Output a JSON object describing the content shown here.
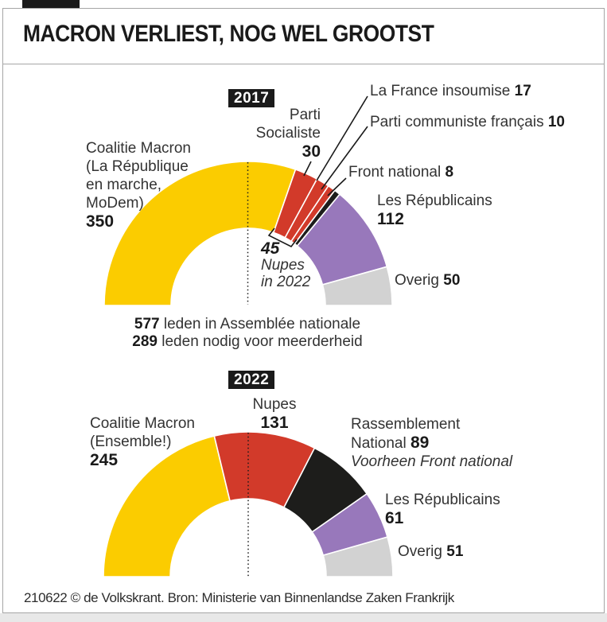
{
  "header": {
    "title": "MACRON VERLIEST, NOG WEL GROOTST"
  },
  "colors": {
    "macron": "#fbcc00",
    "left_red": "#d23a2a",
    "far_right": "#1d1d1b",
    "republicains": "#9878bb",
    "overig": "#d2d2d2"
  },
  "chart_data": [
    {
      "type": "half-donut",
      "year": "2017",
      "total_seats": 577,
      "series": [
        {
          "name": "Coalitie Macron (La République en marche, MoDem)",
          "label_lines": [
            "Coalitie Macron",
            "(La République",
            "en marche,",
            "MoDem)"
          ],
          "value": 350,
          "color_key": "macron"
        },
        {
          "name": "Parti Socialiste",
          "label_lines": [
            "Parti",
            "Socialiste"
          ],
          "value": 30,
          "color_key": "left_red"
        },
        {
          "name": "La France insoumise",
          "value": 17,
          "color_key": "left_red"
        },
        {
          "name": "Parti communiste français",
          "value": 10,
          "color_key": "left_red"
        },
        {
          "name": "Front national",
          "value": 8,
          "color_key": "far_right"
        },
        {
          "name": "Les Républicains",
          "value": 112,
          "color_key": "republicains"
        },
        {
          "name": "Overig",
          "value": 50,
          "color_key": "overig"
        }
      ],
      "annotation": {
        "value": "45",
        "line1": "Nupes",
        "line2": "in 2022"
      },
      "footnotes": [
        {
          "value": "577",
          "text": "leden in Assemblée nationale"
        },
        {
          "value": "289",
          "text": "leden nodig voor meerderheid"
        }
      ]
    },
    {
      "type": "half-donut",
      "year": "2022",
      "total_seats": 577,
      "series": [
        {
          "name": "Coalitie Macron (Ensemble!)",
          "label_lines": [
            "Coalitie Macron",
            "(Ensemble!)"
          ],
          "value": 245,
          "color_key": "macron"
        },
        {
          "name": "Nupes",
          "value": 131,
          "color_key": "left_red"
        },
        {
          "name": "Rassemblement National",
          "label_lines": [
            "Rassemblement",
            "National"
          ],
          "value": 89,
          "note": "Voorheen Front national",
          "color_key": "far_right"
        },
        {
          "name": "Les Républicains",
          "value": 61,
          "color_key": "republicains"
        },
        {
          "name": "Overig",
          "value": 51,
          "color_key": "overig"
        }
      ]
    }
  ],
  "footer": {
    "credit": "210622 © de Volkskrant. Bron: Ministerie van Binnenlandse Zaken Frankrijk"
  }
}
